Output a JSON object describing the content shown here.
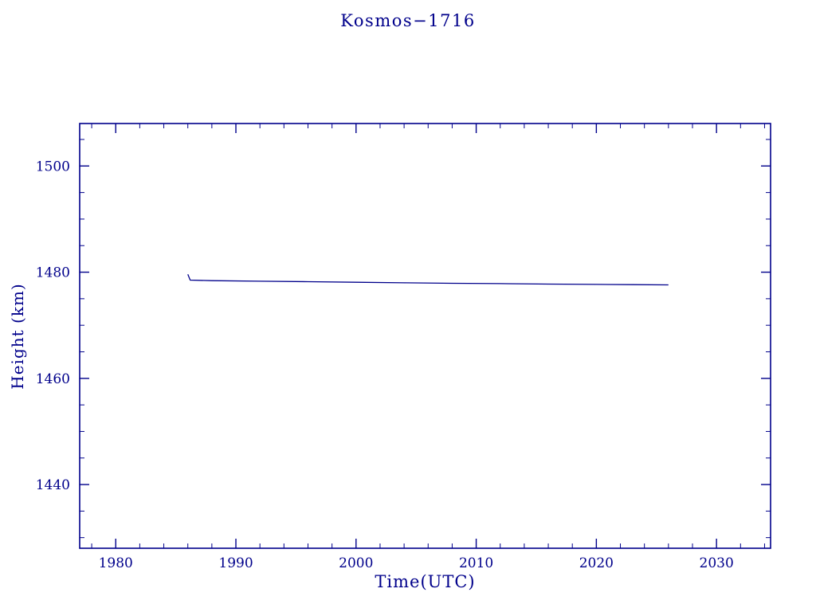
{
  "chart_data": {
    "type": "line",
    "title": "Kosmos−1716",
    "xlabel": "Time(UTC)",
    "ylabel": "Height (km)",
    "xlim": [
      1977,
      2034.5
    ],
    "ylim": [
      1428,
      1508
    ],
    "xticks": [
      1980,
      1990,
      2000,
      2010,
      2020,
      2030
    ],
    "yticks": [
      1440,
      1460,
      1480,
      1500
    ],
    "x_minor_step": 2,
    "y_minor_step": 5,
    "grid": false,
    "legend": "none",
    "axis_color": "#00008B",
    "line_color": "#00008B",
    "series": [
      {
        "name": "height_km",
        "points": [
          [
            1986.0,
            1479.6
          ],
          [
            1986.2,
            1478.5
          ],
          [
            1988.0,
            1478.4
          ],
          [
            1992.0,
            1478.3
          ],
          [
            1996.0,
            1478.2
          ],
          [
            2000.0,
            1478.1
          ],
          [
            2004.0,
            1478.0
          ],
          [
            2008.0,
            1477.9
          ],
          [
            2012.0,
            1477.85
          ],
          [
            2016.0,
            1477.75
          ],
          [
            2020.0,
            1477.7
          ],
          [
            2023.0,
            1477.65
          ],
          [
            2026.0,
            1477.6
          ]
        ]
      }
    ]
  }
}
